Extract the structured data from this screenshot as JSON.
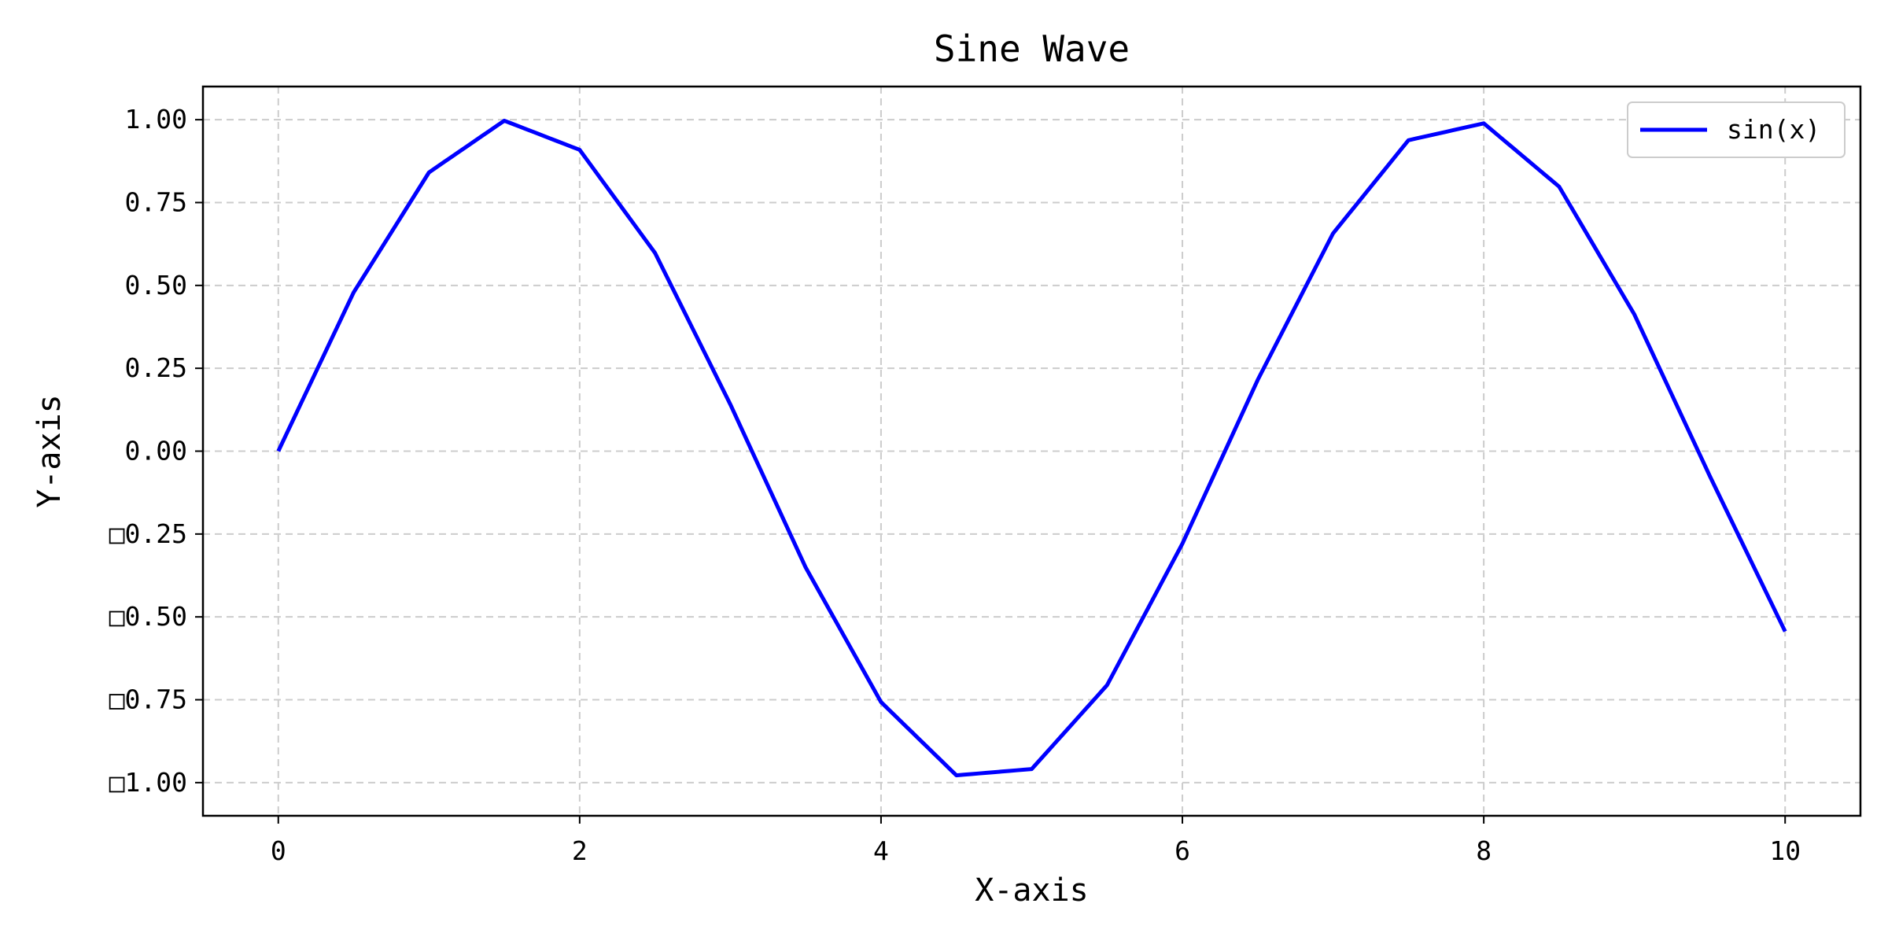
{
  "chart_data": {
    "type": "line",
    "title": "Sine Wave",
    "xlabel": "X-axis",
    "ylabel": "Y-axis",
    "xlim": [
      -0.5,
      10.5
    ],
    "ylim": [
      -1.1,
      1.1
    ],
    "x_ticks": [
      0,
      2,
      4,
      6,
      8,
      10
    ],
    "x_tick_labels": [
      "0",
      "2",
      "4",
      "6",
      "8",
      "10"
    ],
    "y_ticks": [
      1.0,
      0.75,
      0.5,
      0.25,
      0.0,
      -0.25,
      -0.5,
      -0.75,
      -1.0
    ],
    "y_tick_labels": [
      "1.00",
      "0.75",
      "0.50",
      "0.25",
      "0.00",
      "□0.25",
      "□0.50",
      "□0.75",
      "□1.00"
    ],
    "grid": true,
    "legend_position": "top-right",
    "series": [
      {
        "name": "sin(x)",
        "color": "#0000ff",
        "x": [
          0,
          0.5,
          1,
          1.5,
          2,
          2.5,
          3,
          3.5,
          4,
          4.5,
          5,
          5.5,
          6,
          6.5,
          7,
          7.5,
          8,
          8.5,
          9,
          9.5,
          10
        ],
        "y": [
          0.0,
          0.479,
          0.841,
          0.997,
          0.909,
          0.598,
          0.141,
          -0.351,
          -0.757,
          -0.978,
          -0.959,
          -0.706,
          -0.279,
          0.215,
          0.657,
          0.938,
          0.989,
          0.798,
          0.412,
          -0.075,
          -0.544
        ]
      }
    ]
  }
}
